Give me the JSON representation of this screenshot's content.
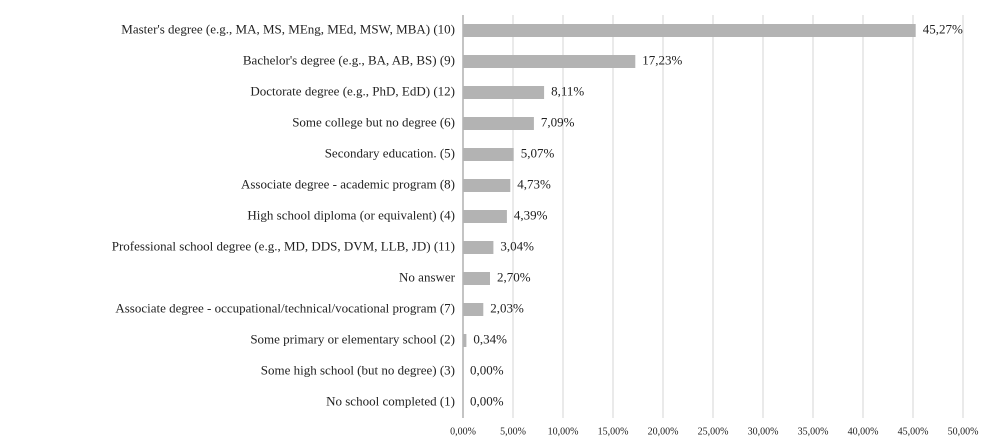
{
  "chart_data": {
    "type": "barh",
    "categories": [
      "Master's degree (e.g., MA, MS, MEng, MEd, MSW, MBA) (10)",
      "Bachelor's degree (e.g., BA, AB, BS) (9)",
      "Doctorate degree (e.g., PhD, EdD) (12)",
      "Some college but no degree (6)",
      "Secondary education. (5)",
      "Associate degree - academic program (8)",
      "High school diploma (or equivalent) (4)",
      "Professional school degree (e.g., MD, DDS, DVM, LLB, JD) (11)",
      "No answer",
      "Associate degree - occupational/technical/vocational program (7)",
      "Some primary or elementary school (2)",
      "Some high school (but no degree) (3)",
      "No school completed (1)"
    ],
    "values": [
      45.27,
      17.23,
      8.11,
      7.09,
      5.07,
      4.73,
      4.39,
      3.04,
      2.7,
      2.03,
      0.34,
      0.0,
      0.0
    ],
    "value_labels": [
      "45,27%",
      "17,23%",
      "8,11%",
      "7,09%",
      "5,07%",
      "4,73%",
      "4,39%",
      "3,04%",
      "2,70%",
      "2,03%",
      "0,34%",
      "0,00%",
      "0,00%"
    ],
    "color": "#b3b3b3",
    "xlim": [
      0,
      50
    ],
    "xticks": [
      {
        "value": 0,
        "label": "0,00%"
      },
      {
        "value": 5,
        "label": "5,00%"
      },
      {
        "value": 10,
        "label": "10,00%"
      },
      {
        "value": 15,
        "label": "15,00%"
      },
      {
        "value": 20,
        "label": "20,00%"
      },
      {
        "value": 25,
        "label": "25,00%"
      },
      {
        "value": 30,
        "label": "30,00%"
      },
      {
        "value": 35,
        "label": "35,00%"
      },
      {
        "value": 40,
        "label": "40,00%"
      },
      {
        "value": 45,
        "label": "45,00%"
      },
      {
        "value": 50,
        "label": "50,00%"
      }
    ],
    "grid": true
  }
}
